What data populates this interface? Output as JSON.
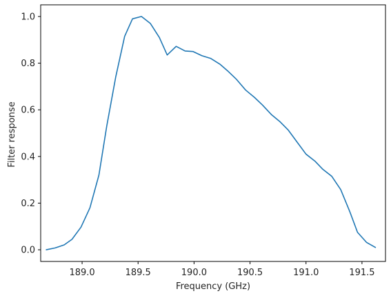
{
  "chart_data": {
    "type": "line",
    "title": "",
    "xlabel": "Frequency (GHz)",
    "ylabel": "Filter response",
    "xlim": [
      188.63,
      191.71
    ],
    "ylim": [
      -0.05,
      1.05
    ],
    "xticks": [
      189.0,
      189.5,
      190.0,
      190.5,
      191.0,
      191.5
    ],
    "xtick_labels": [
      "189.0",
      "189.5",
      "190.0",
      "190.5",
      "191.0",
      "191.5"
    ],
    "yticks": [
      0.0,
      0.2,
      0.4,
      0.6,
      0.8,
      1.0
    ],
    "ytick_labels": [
      "0.0",
      "0.2",
      "0.4",
      "0.6",
      "0.8",
      "1.0"
    ],
    "grid": false,
    "legend": "none",
    "line_color": "#1f77b4",
    "series": [
      {
        "x": [
          188.68,
          188.76,
          188.84,
          188.91,
          188.99,
          189.07,
          189.15,
          189.22,
          189.3,
          189.38,
          189.45,
          189.53,
          189.61,
          189.69,
          189.76,
          189.84,
          189.92,
          189.99,
          190.07,
          190.15,
          190.23,
          190.3,
          190.38,
          190.46,
          190.54,
          190.61,
          190.69,
          190.77,
          190.84,
          190.92,
          191.0,
          191.08,
          191.15,
          191.23,
          191.31,
          191.39,
          191.46,
          191.54,
          191.62
        ],
        "y": [
          0.0,
          0.008,
          0.021,
          0.045,
          0.097,
          0.18,
          0.32,
          0.53,
          0.74,
          0.915,
          0.99,
          1.0,
          0.97,
          0.91,
          0.835,
          0.872,
          0.852,
          0.85,
          0.832,
          0.82,
          0.796,
          0.767,
          0.73,
          0.685,
          0.653,
          0.621,
          0.58,
          0.548,
          0.514,
          0.462,
          0.41,
          0.38,
          0.345,
          0.315,
          0.258,
          0.165,
          0.075,
          0.032,
          0.01
        ]
      }
    ]
  }
}
